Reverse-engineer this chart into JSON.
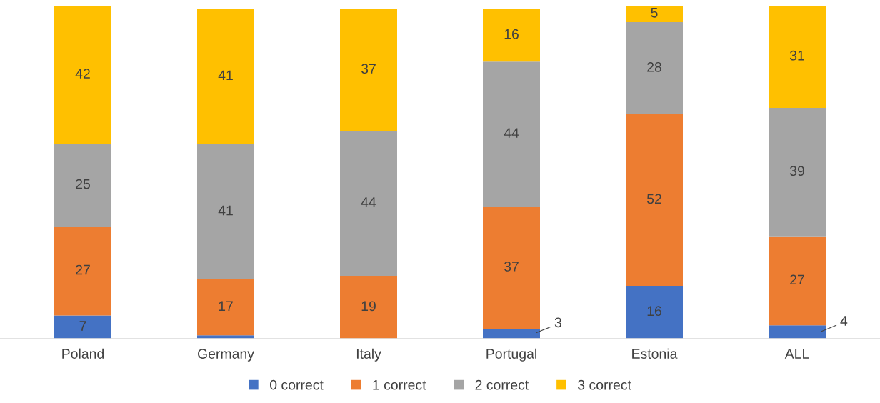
{
  "chart_data": {
    "type": "bar",
    "stacked": true,
    "relative": false,
    "categories": [
      "Poland",
      "Germany",
      "Italy",
      "Portugal",
      "Estonia",
      "ALL"
    ],
    "series": [
      {
        "name": "0 correct",
        "color": "#4472c4",
        "values": [
          7,
          1,
          0,
          3,
          16,
          4
        ],
        "value_labels": [
          "7",
          null,
          null,
          "3",
          "16",
          "4"
        ]
      },
      {
        "name": "1 correct",
        "color": "#ed7d31",
        "values": [
          27,
          17,
          19,
          37,
          52,
          27
        ],
        "value_labels": [
          "27",
          "17",
          "19",
          "37",
          "52",
          "27"
        ]
      },
      {
        "name": "2 correct",
        "color": "#a5a5a5",
        "values": [
          25,
          41,
          44,
          44,
          28,
          39
        ],
        "value_labels": [
          "25",
          "41",
          "44",
          "44",
          "28",
          "39"
        ]
      },
      {
        "name": "3 correct",
        "color": "#ffc000",
        "values": [
          42,
          41,
          37,
          16,
          5,
          31
        ],
        "value_labels": [
          "42",
          "41",
          "37",
          "16",
          "5",
          "31"
        ]
      }
    ],
    "legend": "bottom",
    "grid": false
  }
}
